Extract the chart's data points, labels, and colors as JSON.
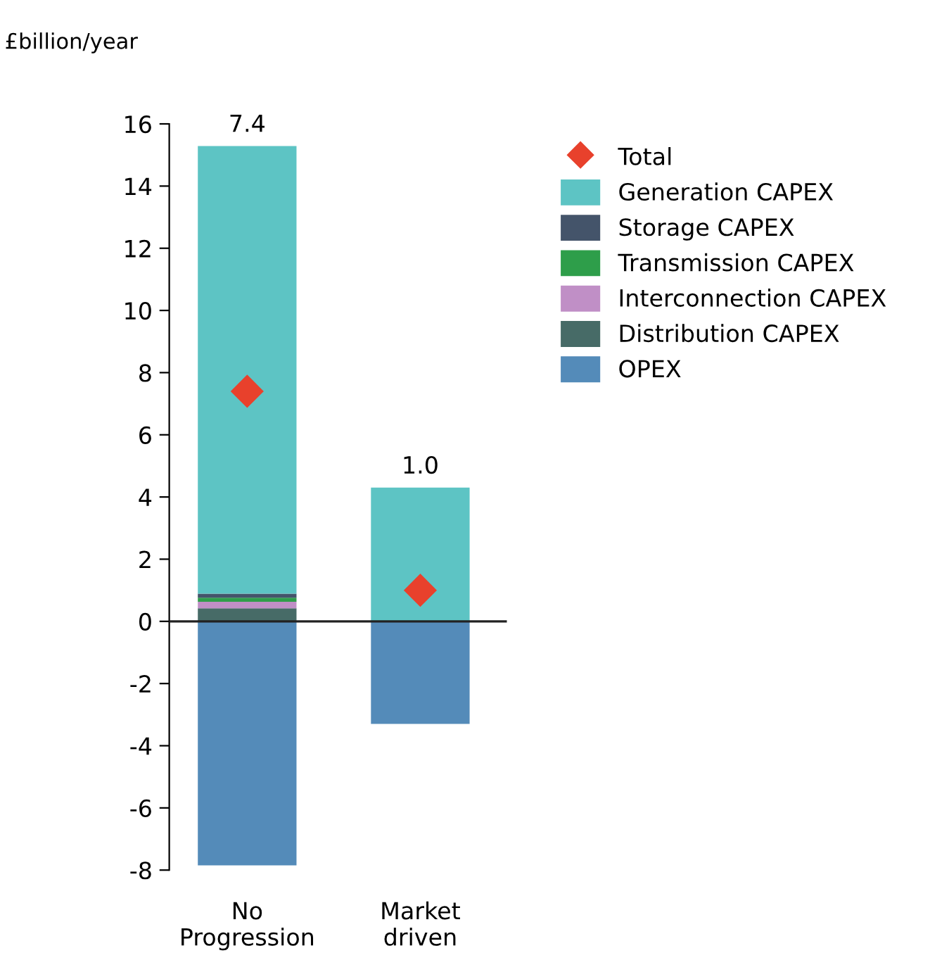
{
  "chart_data": {
    "type": "bar",
    "stacked": true,
    "ylabel": "£billion/year",
    "categories": [
      "No\nProgression",
      "Market\ndriven"
    ],
    "series": [
      {
        "name": "OPEX",
        "color": "#548bb9",
        "values": [
          -7.85,
          -3.3
        ]
      },
      {
        "name": "Distribution CAPEX",
        "color": "#476b67",
        "values": [
          0.42,
          0
        ]
      },
      {
        "name": "Interconnection CAPEX",
        "color": "#c08fc6",
        "values": [
          0.21,
          0
        ]
      },
      {
        "name": "Transmission CAPEX",
        "color": "#2e9e4a",
        "values": [
          0.13,
          0
        ]
      },
      {
        "name": "Storage CAPEX",
        "color": "#44546a",
        "values": [
          0.13,
          0
        ]
      },
      {
        "name": "Generation CAPEX",
        "color": "#5dc4c4",
        "values": [
          14.4,
          4.3
        ]
      },
      {
        "name": "Total",
        "type": "scatter",
        "marker": "diamond",
        "color": "#e8412c",
        "values": [
          7.4,
          1.0
        ]
      }
    ],
    "totals": [
      "7.4",
      "1.0"
    ],
    "ylim": [
      -8,
      16
    ],
    "yticks": [
      -8,
      -6,
      -4,
      -2,
      0,
      2,
      4,
      6,
      8,
      10,
      12,
      14,
      16
    ],
    "ref_lines": [
      {
        "axis": "y",
        "value": 0,
        "color": "#222222"
      }
    ],
    "grid": false,
    "legend": "right"
  }
}
